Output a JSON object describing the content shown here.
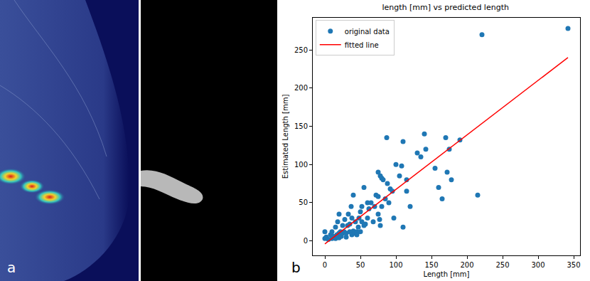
{
  "panel_labels": [
    "a",
    "b"
  ],
  "chart_data": {
    "type": "scatter",
    "title": "length [mm] vs predicted length",
    "x_label": "Length [mm]",
    "y_label": "Estimated Length [mm]",
    "xlim": [
      -17,
      359
    ],
    "ylim": [
      -19,
      292
    ],
    "xticks": [
      0,
      50,
      100,
      150,
      200,
      250,
      300,
      350
    ],
    "yticks": [
      0,
      50,
      100,
      150,
      200,
      250
    ],
    "grid": false,
    "legend": "upper left",
    "series": [
      {
        "name": "original data",
        "type": "scatter",
        "marker": "circle",
        "color": "#1f77b4",
        "x": [
          0,
          0,
          2,
          5,
          8,
          10,
          10,
          12,
          13,
          15,
          15,
          17,
          18,
          18,
          20,
          20,
          20,
          22,
          23,
          25,
          25,
          27,
          28,
          30,
          30,
          32,
          33,
          35,
          35,
          37,
          38,
          38,
          40,
          40,
          42,
          43,
          45,
          45,
          47,
          48,
          50,
          50,
          52,
          52,
          55,
          55,
          57,
          60,
          60,
          62,
          65,
          68,
          70,
          72,
          75,
          75,
          75,
          77,
          78,
          78,
          80,
          80,
          82,
          85,
          87,
          88,
          90,
          92,
          95,
          97,
          100,
          105,
          108,
          110,
          110,
          115,
          115,
          120,
          130,
          135,
          140,
          142,
          155,
          160,
          165,
          170,
          172,
          175,
          178,
          190,
          215,
          221,
          342
        ],
        "values": [
          3,
          12,
          5,
          2,
          8,
          3,
          12,
          6,
          5,
          18,
          3,
          8,
          5,
          25,
          4,
          10,
          35,
          12,
          6,
          20,
          10,
          12,
          28,
          5,
          10,
          20,
          35,
          12,
          22,
          45,
          30,
          8,
          60,
          13,
          10,
          25,
          12,
          8,
          18,
          30,
          38,
          12,
          45,
          25,
          20,
          70,
          22,
          50,
          30,
          42,
          50,
          25,
          45,
          60,
          58,
          90,
          35,
          28,
          85,
          20,
          82,
          45,
          80,
          55,
          135,
          75,
          50,
          68,
          65,
          30,
          100,
          85,
          98,
          18,
          130,
          80,
          65,
          45,
          115,
          110,
          140,
          120,
          95,
          70,
          55,
          135,
          90,
          120,
          80,
          132,
          60,
          270,
          278
        ]
      },
      {
        "name": "fitted line",
        "type": "line",
        "line_style": "solid",
        "color": "#ff0000",
        "x": [
          0,
          342
        ],
        "values": [
          -4,
          240
        ]
      }
    ]
  }
}
